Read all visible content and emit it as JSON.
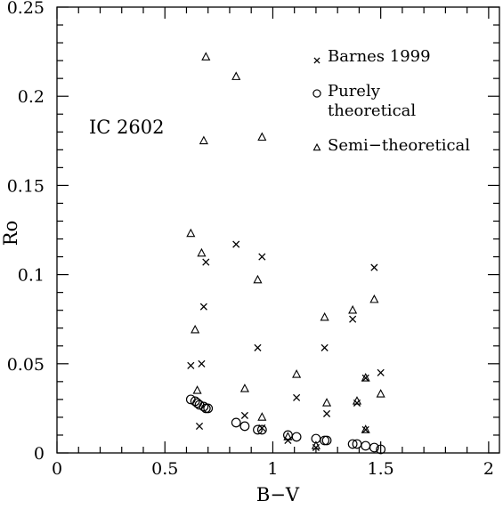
{
  "chart_data": {
    "type": "scatter",
    "title": "",
    "annotation": "IC 2602",
    "xlabel": "B−V",
    "ylabel": "Ro",
    "xlim": [
      0,
      2.05
    ],
    "ylim": [
      0,
      0.25
    ],
    "x_ticks": [
      0,
      0.5,
      1,
      1.5,
      2
    ],
    "x_tick_labels": [
      "0",
      "0.5",
      "1",
      "1.5",
      "2"
    ],
    "y_ticks": [
      0,
      0.05,
      0.1,
      0.15,
      0.2,
      0.25
    ],
    "y_tick_labels": [
      "0",
      "0.05",
      "0.1",
      "0.15",
      "0.2",
      "0.25"
    ],
    "grid": false,
    "legend_position": "top-right",
    "series": [
      {
        "name": "Barnes 1999",
        "marker": "cross",
        "points": [
          [
            0.62,
            0.049
          ],
          [
            0.66,
            0.015
          ],
          [
            0.67,
            0.05
          ],
          [
            0.68,
            0.082
          ],
          [
            0.69,
            0.107
          ],
          [
            0.83,
            0.117
          ],
          [
            0.87,
            0.021
          ],
          [
            0.93,
            0.059
          ],
          [
            0.95,
            0.11
          ],
          [
            0.95,
            0.014
          ],
          [
            1.07,
            0.007
          ],
          [
            1.11,
            0.031
          ],
          [
            1.2,
            0.003
          ],
          [
            1.24,
            0.059
          ],
          [
            1.25,
            0.022
          ],
          [
            1.37,
            0.075
          ],
          [
            1.39,
            0.028
          ],
          [
            1.43,
            0.042
          ],
          [
            1.43,
            0.013
          ],
          [
            1.47,
            0.104
          ],
          [
            1.5,
            0.045
          ]
        ]
      },
      {
        "name": "Purely theoretical",
        "marker": "circle",
        "points": [
          [
            0.62,
            0.03
          ],
          [
            0.64,
            0.029
          ],
          [
            0.65,
            0.028
          ],
          [
            0.66,
            0.027
          ],
          [
            0.68,
            0.026
          ],
          [
            0.69,
            0.025
          ],
          [
            0.7,
            0.025
          ],
          [
            0.83,
            0.017
          ],
          [
            0.87,
            0.015
          ],
          [
            0.93,
            0.013
          ],
          [
            0.95,
            0.013
          ],
          [
            1.07,
            0.01
          ],
          [
            1.11,
            0.009
          ],
          [
            1.2,
            0.008
          ],
          [
            1.24,
            0.007
          ],
          [
            1.25,
            0.007
          ],
          [
            1.37,
            0.005
          ],
          [
            1.39,
            0.005
          ],
          [
            1.43,
            0.004
          ],
          [
            1.47,
            0.003
          ],
          [
            1.5,
            0.002
          ]
        ]
      },
      {
        "name": "Semi−theoretical",
        "marker": "triangle",
        "points": [
          [
            0.62,
            0.123
          ],
          [
            0.64,
            0.069
          ],
          [
            0.65,
            0.035
          ],
          [
            0.67,
            0.112
          ],
          [
            0.68,
            0.175
          ],
          [
            0.69,
            0.222
          ],
          [
            0.83,
            0.211
          ],
          [
            0.87,
            0.036
          ],
          [
            0.93,
            0.097
          ],
          [
            0.95,
            0.177
          ],
          [
            0.95,
            0.02
          ],
          [
            1.07,
            0.009
          ],
          [
            1.11,
            0.044
          ],
          [
            1.2,
            0.004
          ],
          [
            1.24,
            0.076
          ],
          [
            1.25,
            0.028
          ],
          [
            1.37,
            0.08
          ],
          [
            1.39,
            0.029
          ],
          [
            1.43,
            0.042
          ],
          [
            1.43,
            0.013
          ],
          [
            1.47,
            0.086
          ],
          [
            1.5,
            0.033
          ]
        ]
      }
    ]
  }
}
